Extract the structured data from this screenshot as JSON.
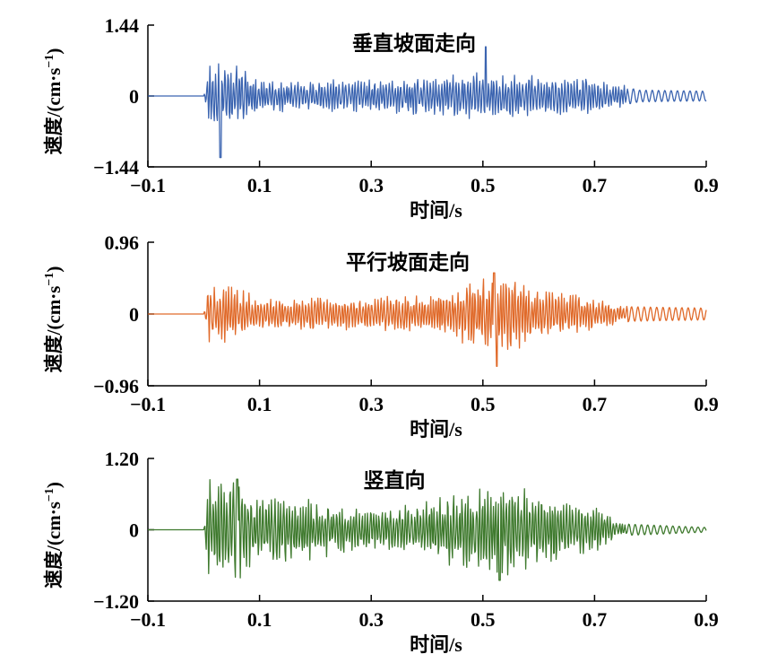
{
  "chart_data": [
    {
      "type": "line",
      "title": "垂直坡面走向",
      "xlabel": "时间/s",
      "ylabel": "速度/(cm·s",
      "ylabel_sup": "−1",
      "ylabel_close": ")",
      "xlim": [
        -0.1,
        0.9
      ],
      "ylim": [
        -1.44,
        1.44
      ],
      "xticks": [
        -0.1,
        0.1,
        0.3,
        0.5,
        0.7,
        0.9
      ],
      "xtick_labels": [
        "−0.1",
        "0.1",
        "0.3",
        "0.5",
        "0.7",
        "0.9"
      ],
      "yticks": [
        -1.44,
        0,
        1.44
      ],
      "ytick_labels": [
        "−1.44",
        "0",
        "1.44"
      ],
      "color": "#3b64b0",
      "quiet_until": 0.0,
      "peak_time": 0.505,
      "peak_value": 1.0,
      "trough_time": 0.03,
      "trough_value": -1.25,
      "envelope": [
        [
          0.0,
          0.0
        ],
        [
          0.01,
          0.55
        ],
        [
          0.05,
          0.6
        ],
        [
          0.1,
          0.3
        ],
        [
          0.2,
          0.28
        ],
        [
          0.3,
          0.3
        ],
        [
          0.4,
          0.36
        ],
        [
          0.5,
          0.42
        ],
        [
          0.6,
          0.4
        ],
        [
          0.7,
          0.32
        ],
        [
          0.75,
          0.2
        ],
        [
          0.78,
          0.12
        ],
        [
          0.9,
          0.1
        ]
      ],
      "values": [
        0.0,
        -0.1,
        0.56,
        -1.25,
        0.65,
        -0.5,
        0.28,
        -0.22,
        0.3,
        -0.28,
        0.36,
        -0.34,
        0.42,
        1.0,
        -0.45,
        0.4,
        -0.38,
        0.32,
        -0.2,
        0.12,
        -0.1,
        0.1,
        0.05
      ]
    },
    {
      "type": "line",
      "title": "平行坡面走向",
      "xlabel": "时间/s",
      "ylabel": "速度/(cm·s",
      "ylabel_sup": "−1",
      "ylabel_close": ")",
      "xlim": [
        -0.1,
        0.9
      ],
      "ylim": [
        -0.96,
        0.96
      ],
      "xticks": [
        -0.1,
        0.1,
        0.3,
        0.5,
        0.7,
        0.9
      ],
      "xtick_labels": [
        "−0.1",
        "0.1",
        "0.3",
        "0.5",
        "0.7",
        "0.9"
      ],
      "yticks": [
        -0.96,
        0,
        0.96
      ],
      "ytick_labels": [
        "−0.96",
        "0",
        "0.96"
      ],
      "color": "#e06a2a",
      "quiet_until": 0.0,
      "peak_time": 0.52,
      "peak_value": 0.55,
      "trough_time": 0.525,
      "trough_value": -0.7,
      "envelope": [
        [
          0.0,
          0.0
        ],
        [
          0.01,
          0.35
        ],
        [
          0.05,
          0.33
        ],
        [
          0.1,
          0.22
        ],
        [
          0.2,
          0.2
        ],
        [
          0.3,
          0.2
        ],
        [
          0.4,
          0.22
        ],
        [
          0.45,
          0.3
        ],
        [
          0.5,
          0.45
        ],
        [
          0.55,
          0.45
        ],
        [
          0.6,
          0.3
        ],
        [
          0.7,
          0.2
        ],
        [
          0.75,
          0.1
        ],
        [
          0.9,
          0.08
        ]
      ],
      "values": [
        0.0,
        -0.1,
        0.35,
        -0.35,
        0.3,
        -0.25,
        0.22,
        -0.2,
        0.2,
        -0.2,
        0.22,
        -0.3,
        0.45,
        0.55,
        -0.7,
        0.45,
        -0.3,
        0.2,
        -0.15,
        0.1,
        -0.08,
        0.08,
        0.05
      ]
    },
    {
      "type": "line",
      "title": "竖直向",
      "xlabel": "时间/s",
      "ylabel": "速度/(cm·s",
      "ylabel_sup": "−1",
      "ylabel_close": ")",
      "xlim": [
        -0.1,
        0.9
      ],
      "ylim": [
        -1.2,
        1.2
      ],
      "xticks": [
        -0.1,
        0.1,
        0.3,
        0.5,
        0.7,
        0.9
      ],
      "xtick_labels": [
        "−0.1",
        "0.1",
        "0.3",
        "0.5",
        "0.7",
        "0.9"
      ],
      "yticks": [
        -1.2,
        0,
        1.2
      ],
      "ytick_labels": [
        "−1.20",
        "0",
        "1.20"
      ],
      "color": "#3f7a2e",
      "quiet_until": 0.0,
      "peak_time": 0.06,
      "peak_value": 0.85,
      "trough_time": 0.53,
      "trough_value": -0.85,
      "envelope": [
        [
          0.0,
          0.0
        ],
        [
          0.01,
          0.75
        ],
        [
          0.06,
          0.85
        ],
        [
          0.1,
          0.5
        ],
        [
          0.2,
          0.45
        ],
        [
          0.3,
          0.3
        ],
        [
          0.4,
          0.45
        ],
        [
          0.5,
          0.65
        ],
        [
          0.55,
          0.7
        ],
        [
          0.6,
          0.55
        ],
        [
          0.7,
          0.35
        ],
        [
          0.75,
          0.1
        ],
        [
          0.9,
          0.04
        ]
      ],
      "values": [
        0.0,
        -0.1,
        0.75,
        -0.85,
        0.85,
        -0.5,
        0.45,
        -0.4,
        0.3,
        -0.35,
        0.45,
        -0.6,
        0.65,
        -0.85,
        0.7,
        -0.55,
        0.35,
        -0.2,
        0.1,
        -0.06,
        0.04,
        -0.03,
        0.02
      ]
    }
  ]
}
